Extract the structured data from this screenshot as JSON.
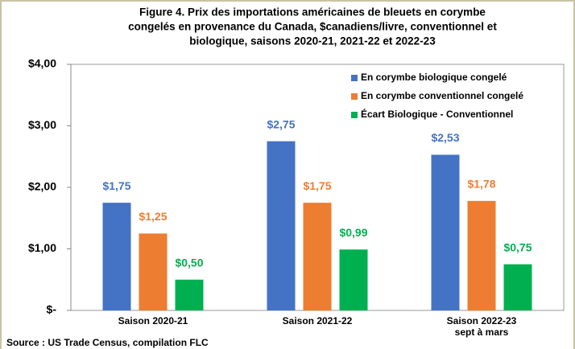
{
  "chart_data": {
    "type": "bar",
    "title": [
      "Figure 4. Prix des importations américaines de bleuets en corymbe",
      "congelés en provenance du Canada, $canadiens/livre, conventionnel et",
      "biologique, saisons 2020-21, 2021-22 et 2022-23"
    ],
    "categories": [
      "Saison 2020-21",
      "Saison 2021-22",
      "Saison 2022-23\nsept à mars"
    ],
    "series": [
      {
        "name": "En corymbe biologique congelé",
        "color": "#4472c4",
        "values": [
          1.75,
          2.75,
          2.53
        ],
        "value_labels": [
          "$1,75",
          "$2,75",
          "$2,53"
        ]
      },
      {
        "name": "En corymbe conventionnel congelé",
        "color": "#ed7d31",
        "values": [
          1.25,
          1.75,
          1.78
        ],
        "value_labels": [
          "$1,25",
          "$1,75",
          "$1,78"
        ]
      },
      {
        "name": "Écart Biologique - Conventionnel",
        "color": "#00b050",
        "values": [
          0.5,
          0.99,
          0.75
        ],
        "value_labels": [
          "$0,50",
          "$0,99",
          "$0,75"
        ]
      }
    ],
    "ylim": [
      0,
      4
    ],
    "yticks": [
      {
        "value": 0,
        "label": "$-"
      },
      {
        "value": 1,
        "label": "$1,00"
      },
      {
        "value": 2,
        "label": "$2,00"
      },
      {
        "value": 3,
        "label": "$3,00"
      },
      {
        "value": 4,
        "label": "$4,00"
      }
    ],
    "grid": false,
    "legend": "upper-right",
    "source": "Source : US Trade Census, compilation FLC"
  }
}
